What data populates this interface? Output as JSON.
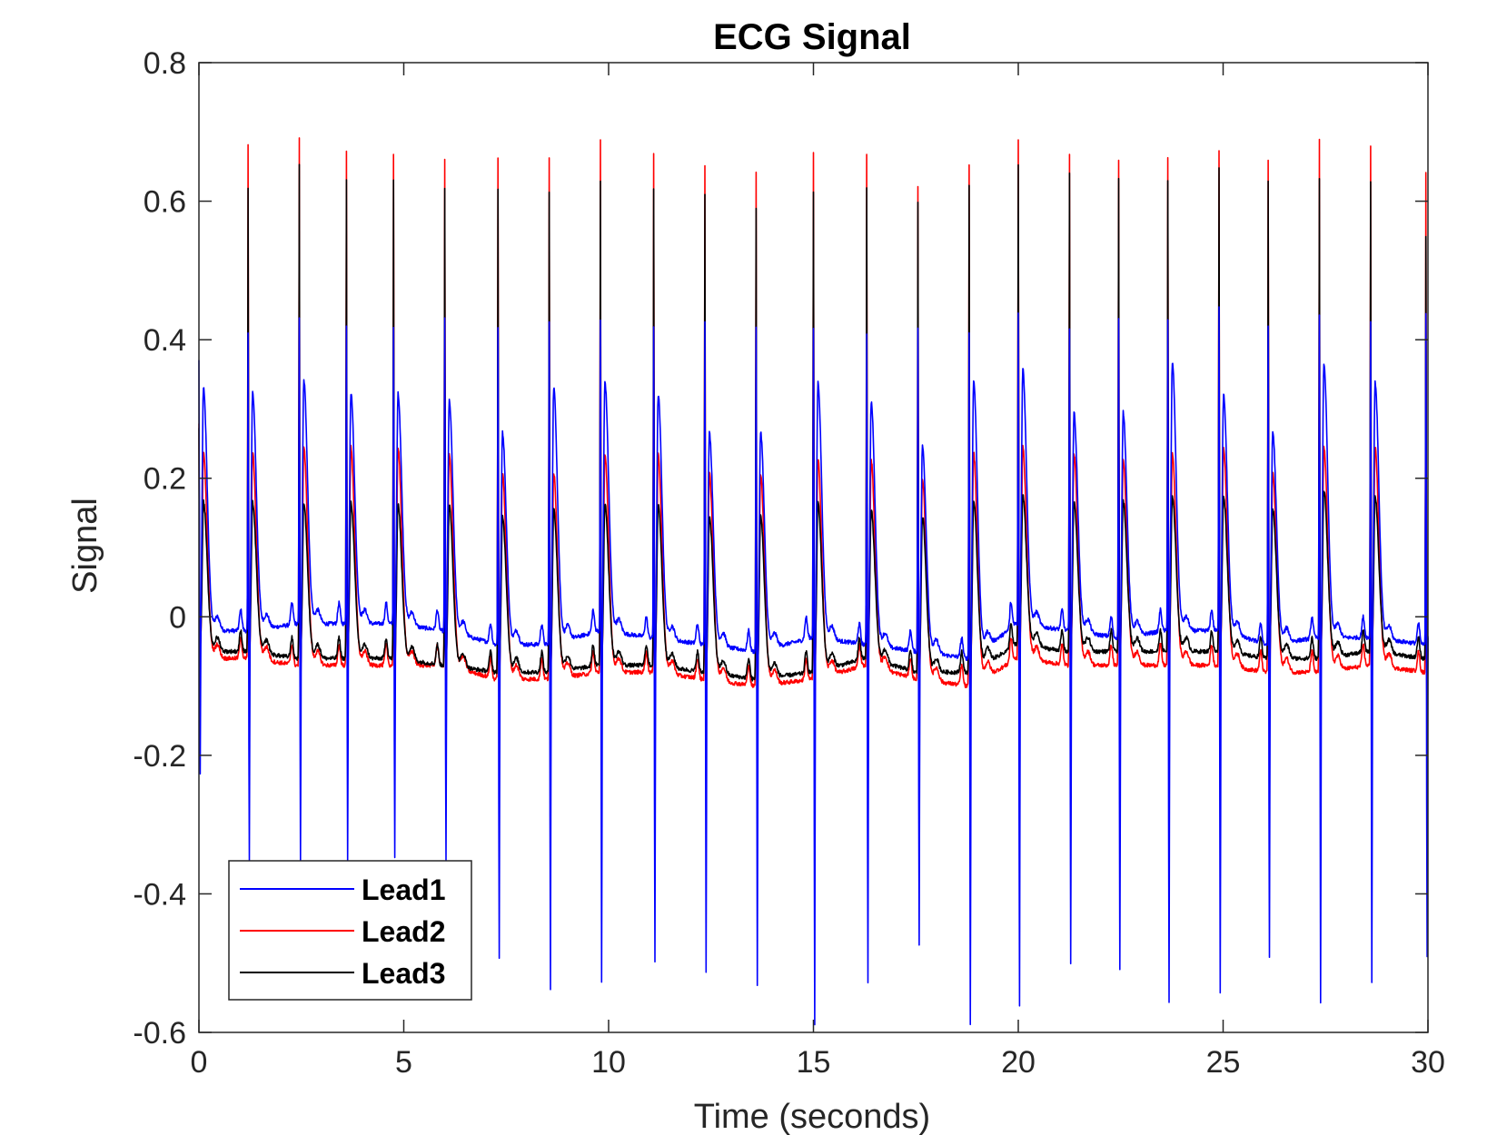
{
  "chart_data": {
    "type": "line",
    "title": "ECG Signal",
    "xlabel": "Time (seconds)",
    "ylabel": "Signal",
    "xlim": [
      0,
      30
    ],
    "ylim": [
      -0.6,
      0.8
    ],
    "xticks": [
      0,
      5,
      10,
      15,
      20,
      25,
      30
    ],
    "yticks": [
      -0.6,
      -0.4,
      -0.2,
      0,
      0.2,
      0.4,
      0.6,
      0.8
    ],
    "xtick_labels": [
      "0",
      "5",
      "10",
      "15",
      "20",
      "25",
      "30"
    ],
    "ytick_labels": [
      "-0.6",
      "-0.4",
      "-0.2",
      "0",
      "0.2",
      "0.4",
      "0.6",
      "0.8"
    ],
    "grid": false,
    "legend_position": "bottom-left",
    "beat_times": [
      0.0,
      1.2,
      2.45,
      3.6,
      4.75,
      6.0,
      7.3,
      8.55,
      9.8,
      11.1,
      12.35,
      13.6,
      15.0,
      16.3,
      17.55,
      18.8,
      20.0,
      21.25,
      22.45,
      23.65,
      24.9,
      26.1,
      27.35,
      28.6,
      29.95
    ],
    "series": [
      {
        "name": "Lead1",
        "color": "#0000ff",
        "r_peaks": [
          0.37,
          0.41,
          0.43,
          0.42,
          0.42,
          0.43,
          0.42,
          0.43,
          0.43,
          0.42,
          0.43,
          0.42,
          0.42,
          0.41,
          0.42,
          0.41,
          0.44,
          0.42,
          0.43,
          0.43,
          0.45,
          0.42,
          0.44,
          0.43,
          0.44
        ],
        "s_troughs": [
          -0.24,
          -0.36,
          -0.36,
          -0.36,
          -0.36,
          -0.36,
          -0.5,
          -0.55,
          -0.54,
          -0.51,
          -0.52,
          -0.54,
          -0.6,
          -0.54,
          -0.48,
          -0.6,
          -0.57,
          -0.51,
          -0.52,
          -0.57,
          -0.55,
          -0.5,
          -0.57,
          -0.54,
          -0.5
        ],
        "t_peaks": [
          0.37,
          0.36,
          0.38,
          0.36,
          0.36,
          0.35,
          0.3,
          0.37,
          0.38,
          0.36,
          0.3,
          0.3,
          0.38,
          0.35,
          0.28,
          0.38,
          0.4,
          0.33,
          0.33,
          0.41,
          0.36,
          0.3,
          0.41,
          0.38,
          0.38
        ],
        "baseline": [
          -0.02,
          -0.02,
          -0.01,
          -0.01,
          -0.01,
          -0.02,
          -0.04,
          -0.04,
          -0.02,
          -0.03,
          -0.04,
          -0.05,
          -0.03,
          -0.04,
          -0.05,
          -0.06,
          -0.01,
          -0.02,
          -0.03,
          -0.02,
          -0.02,
          -0.04,
          -0.03,
          -0.03,
          -0.04
        ]
      },
      {
        "name": "Lead2",
        "color": "#ff0000",
        "r_peaks": [
          0.28,
          0.68,
          0.69,
          0.67,
          0.67,
          0.66,
          0.66,
          0.66,
          0.69,
          0.67,
          0.65,
          0.64,
          0.67,
          0.67,
          0.62,
          0.65,
          0.69,
          0.67,
          0.66,
          0.66,
          0.67,
          0.66,
          0.69,
          0.68,
          0.64
        ],
        "s_troughs": [
          -0.06,
          -0.11,
          -0.12,
          -0.12,
          -0.12,
          -0.12,
          -0.12,
          -0.13,
          -0.13,
          -0.13,
          -0.14,
          -0.16,
          -0.17,
          -0.15,
          -0.17,
          -0.16,
          -0.12,
          -0.12,
          -0.13,
          -0.13,
          -0.13,
          -0.14,
          -0.14,
          -0.14,
          -0.16
        ],
        "t_peaks": [
          0.27,
          0.27,
          0.28,
          0.28,
          0.28,
          0.27,
          0.24,
          0.24,
          0.27,
          0.27,
          0.24,
          0.24,
          0.26,
          0.26,
          0.23,
          0.27,
          0.28,
          0.27,
          0.26,
          0.27,
          0.28,
          0.24,
          0.28,
          0.28,
          0.28
        ],
        "baseline": [
          -0.06,
          -0.06,
          -0.07,
          -0.07,
          -0.07,
          -0.07,
          -0.09,
          -0.09,
          -0.08,
          -0.08,
          -0.09,
          -0.1,
          -0.09,
          -0.07,
          -0.09,
          -0.1,
          -0.06,
          -0.07,
          -0.07,
          -0.07,
          -0.07,
          -0.08,
          -0.08,
          -0.07,
          -0.08
        ]
      },
      {
        "name": "Lead3",
        "color": "#000000",
        "r_peaks": [
          0.27,
          0.62,
          0.65,
          0.63,
          0.63,
          0.62,
          0.62,
          0.61,
          0.63,
          0.62,
          0.61,
          0.59,
          0.61,
          0.62,
          0.6,
          0.62,
          0.65,
          0.64,
          0.63,
          0.63,
          0.65,
          0.63,
          0.63,
          0.63,
          0.55
        ],
        "s_troughs": [
          -0.05,
          -0.09,
          -0.09,
          -0.09,
          -0.09,
          -0.09,
          -0.1,
          -0.1,
          -0.1,
          -0.1,
          -0.11,
          -0.12,
          -0.13,
          -0.11,
          -0.13,
          -0.12,
          -0.1,
          -0.1,
          -0.1,
          -0.1,
          -0.1,
          -0.11,
          -0.11,
          -0.1,
          -0.12
        ],
        "t_peaks": [
          0.19,
          0.19,
          0.19,
          0.19,
          0.19,
          0.19,
          0.17,
          0.18,
          0.19,
          0.19,
          0.17,
          0.17,
          0.19,
          0.18,
          0.17,
          0.19,
          0.2,
          0.19,
          0.19,
          0.2,
          0.2,
          0.18,
          0.21,
          0.2,
          0.2
        ],
        "baseline": [
          -0.05,
          -0.05,
          -0.06,
          -0.06,
          -0.06,
          -0.07,
          -0.08,
          -0.08,
          -0.07,
          -0.07,
          -0.08,
          -0.09,
          -0.08,
          -0.06,
          -0.08,
          -0.08,
          -0.04,
          -0.05,
          -0.05,
          -0.05,
          -0.05,
          -0.06,
          -0.06,
          -0.05,
          -0.06
        ]
      }
    ]
  }
}
